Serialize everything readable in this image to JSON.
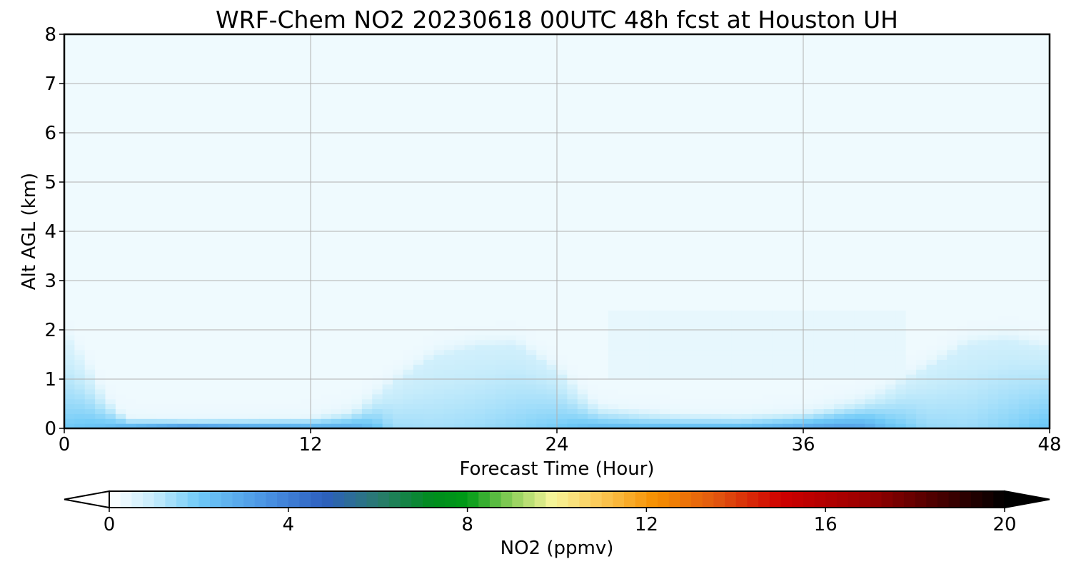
{
  "chart_data": {
    "type": "heatmap",
    "title": "WRF-Chem NO2  20230618 00UTC 48h fcst at Houston UH",
    "xlabel": "Forecast Time (Hour)",
    "ylabel": "Alt AGL (km)",
    "xlim": [
      0,
      48
    ],
    "ylim": [
      0,
      8
    ],
    "xticks": [
      0,
      12,
      24,
      36,
      48
    ],
    "yticks": [
      0,
      1,
      2,
      3,
      4,
      5,
      6,
      7,
      8
    ],
    "grid": true,
    "colorbar": {
      "label": "NO2  (ppmv)",
      "orientation": "horizontal",
      "position": "bottom",
      "range": [
        0,
        20
      ],
      "ticks": [
        0,
        4,
        8,
        12,
        16,
        20
      ],
      "extend": "both",
      "levels": 80,
      "stops": [
        {
          "value": 0,
          "color": "#ffffff"
        },
        {
          "value": 1,
          "color": "#c6ecfb"
        },
        {
          "value": 2,
          "color": "#6fcaf8"
        },
        {
          "value": 3.5,
          "color": "#4a93e3"
        },
        {
          "value": 4.8,
          "color": "#2d5fbf"
        },
        {
          "value": 6,
          "color": "#2a7a70"
        },
        {
          "value": 7.2,
          "color": "#008c1e"
        },
        {
          "value": 8,
          "color": "#009a16"
        },
        {
          "value": 9,
          "color": "#8fcf5a"
        },
        {
          "value": 9.9,
          "color": "#f7f59a"
        },
        {
          "value": 11,
          "color": "#fbc754"
        },
        {
          "value": 12.2,
          "color": "#f68f00"
        },
        {
          "value": 13.5,
          "color": "#e25a10"
        },
        {
          "value": 15,
          "color": "#cf0000"
        },
        {
          "value": 17,
          "color": "#960000"
        },
        {
          "value": 18.5,
          "color": "#4a0000"
        },
        {
          "value": 20,
          "color": "#000000"
        }
      ]
    },
    "columns": [
      {
        "hour": 0,
        "top": 1.9,
        "peak": 2.0,
        "base": 0.6
      },
      {
        "hour": 1,
        "top": 1.4,
        "peak": 2.2,
        "base": 0.5
      },
      {
        "hour": 2,
        "top": 0.7,
        "peak": 2.4,
        "base": 0.4
      },
      {
        "hour": 3,
        "top": 0.25,
        "peak": 3.0,
        "base": 0.4
      },
      {
        "hour": 6,
        "top": 0.2,
        "peak": 4.2,
        "base": 0.4
      },
      {
        "hour": 9,
        "top": 0.22,
        "peak": 3.6,
        "base": 0.4
      },
      {
        "hour": 12,
        "top": 0.25,
        "peak": 3.2,
        "base": 0.4
      },
      {
        "hour": 14,
        "top": 0.35,
        "peak": 3.0,
        "base": 0.6
      },
      {
        "hour": 15,
        "top": 0.6,
        "peak": 2.4,
        "base": 0.7
      },
      {
        "hour": 16,
        "top": 0.9,
        "peak": 1.5,
        "base": 0.8
      },
      {
        "hour": 18,
        "top": 1.45,
        "peak": 1.4,
        "base": 0.8
      },
      {
        "hour": 20,
        "top": 1.65,
        "peak": 1.5,
        "base": 0.8
      },
      {
        "hour": 22,
        "top": 1.7,
        "peak": 1.7,
        "base": 0.8
      },
      {
        "hour": 24,
        "top": 1.15,
        "peak": 2.0,
        "base": 0.8
      },
      {
        "hour": 25,
        "top": 0.8,
        "peak": 2.3,
        "base": 0.6
      },
      {
        "hour": 26,
        "top": 0.5,
        "peak": 2.6,
        "base": 0.4
      },
      {
        "hour": 28,
        "top": 0.4,
        "peak": 2.6,
        "base": 0.4
      },
      {
        "hour": 30,
        "top": 0.33,
        "peak": 2.6,
        "base": 0.4
      },
      {
        "hour": 33,
        "top": 0.3,
        "peak": 2.7,
        "base": 0.4
      },
      {
        "hour": 36,
        "top": 0.35,
        "peak": 3.2,
        "base": 0.5
      },
      {
        "hour": 38,
        "top": 0.5,
        "peak": 3.4,
        "base": 0.6
      },
      {
        "hour": 39,
        "top": 0.6,
        "peak": 3.2,
        "base": 0.6
      },
      {
        "hour": 40,
        "top": 0.75,
        "peak": 2.4,
        "base": 0.7
      },
      {
        "hour": 42,
        "top": 1.2,
        "peak": 1.6,
        "base": 0.8
      },
      {
        "hour": 44,
        "top": 1.7,
        "peak": 1.5,
        "base": 0.8
      },
      {
        "hour": 46,
        "top": 1.8,
        "peak": 1.8,
        "base": 0.8
      },
      {
        "hour": 47,
        "top": 1.7,
        "peak": 2.0,
        "base": 0.8
      },
      {
        "hour": 48,
        "top": 1.6,
        "peak": 2.2,
        "base": 0.8
      }
    ]
  }
}
